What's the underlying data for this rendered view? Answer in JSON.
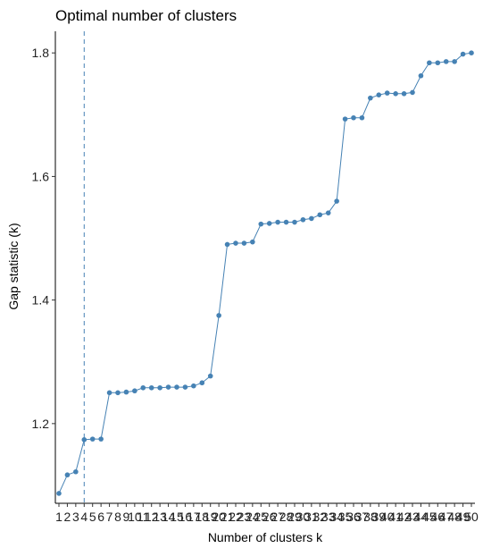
{
  "chart_data": {
    "type": "line",
    "title": "Optimal number of clusters",
    "xlabel": "Number of clusters k",
    "ylabel": "Gap statistic (k)",
    "x": [
      1,
      2,
      3,
      4,
      5,
      6,
      7,
      8,
      9,
      10,
      11,
      12,
      13,
      14,
      15,
      16,
      17,
      18,
      19,
      20,
      21,
      22,
      23,
      24,
      25,
      26,
      27,
      28,
      29,
      30,
      31,
      32,
      33,
      34,
      35,
      36,
      37,
      38,
      39,
      40,
      41,
      42,
      43,
      44,
      45,
      46,
      47,
      48,
      49,
      50
    ],
    "x_tick_labels": [
      "1",
      "2",
      "3",
      "4",
      "5",
      "6",
      "7",
      "8",
      "9",
      "10",
      "11",
      "12",
      "13",
      "14",
      "15",
      "16",
      "17",
      "18",
      "19",
      "20",
      "21",
      "22",
      "23",
      "24",
      "25",
      "26",
      "27",
      "28",
      "29",
      "30",
      "31",
      "32",
      "33",
      "34",
      "35",
      "36",
      "37",
      "38",
      "39",
      "40",
      "41",
      "42",
      "43",
      "44",
      "45",
      "46",
      "47",
      "48",
      "49",
      "50"
    ],
    "series": [
      {
        "values": [
          1.087,
          1.117,
          1.122,
          1.174,
          1.175,
          1.175,
          1.25,
          1.25,
          1.251,
          1.253,
          1.258,
          1.258,
          1.258,
          1.259,
          1.259,
          1.259,
          1.261,
          1.266,
          1.277,
          1.375,
          1.49,
          1.492,
          1.492,
          1.494,
          1.523,
          1.524,
          1.526,
          1.526,
          1.526,
          1.53,
          1.532,
          1.538,
          1.541,
          1.56,
          1.693,
          1.695,
          1.695,
          1.727,
          1.732,
          1.735,
          1.734,
          1.734,
          1.736,
          1.763,
          1.784,
          1.784,
          1.786,
          1.786,
          1.798,
          1.8
        ],
        "color": "#4682B4"
      }
    ],
    "optimal_k": 4,
    "optimal_line_color": "#4682B4",
    "y_ticks": [
      1.2,
      1.4,
      1.6,
      1.8
    ],
    "y_tick_labels": [
      "1.2",
      "1.4",
      "1.6",
      "1.8"
    ],
    "xlim": [
      1,
      50
    ],
    "ylim": [
      1.071,
      1.835
    ],
    "grid": false,
    "legend": "none"
  }
}
